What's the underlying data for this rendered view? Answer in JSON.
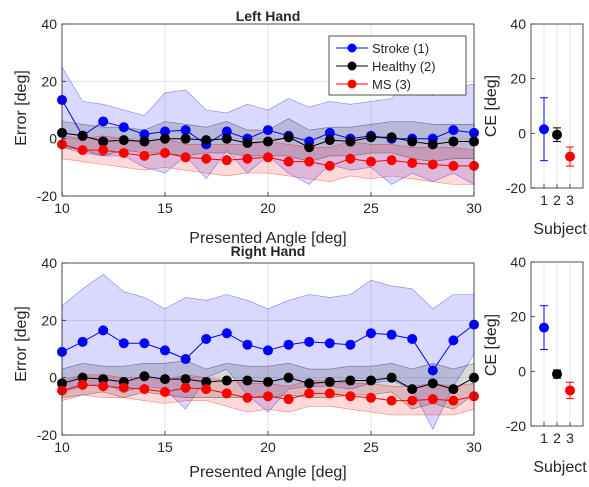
{
  "chart_data": [
    {
      "id": "left-main",
      "type": "line",
      "title": "Left Hand",
      "xlabel": "Presented Angle [deg]",
      "ylabel": "Error [deg]",
      "xlim": [
        10,
        30
      ],
      "ylim": [
        -20,
        40
      ],
      "xticks": [
        "10",
        "15",
        "20",
        "25",
        "30"
      ],
      "yticks": [
        "-20",
        "0",
        "20",
        "40"
      ],
      "grid": true,
      "legend_position": "top-right",
      "x": [
        10,
        11,
        12,
        13,
        14,
        15,
        16,
        17,
        18,
        19,
        20,
        21,
        22,
        23,
        24,
        25,
        26,
        27,
        28,
        29,
        30
      ],
      "series": [
        {
          "name": "Stroke (1)",
          "color": "#0000ff",
          "values": [
            13.5,
            1,
            6,
            4,
            1.5,
            2.5,
            3,
            -2,
            2.5,
            0,
            3,
            1,
            -1,
            2,
            0,
            1,
            0,
            0,
            0,
            3,
            2
          ],
          "band_upper": [
            25,
            13,
            12,
            10,
            8,
            16,
            17,
            10,
            9,
            12,
            10,
            14,
            11,
            13,
            12,
            13,
            14,
            22,
            15,
            18,
            19
          ],
          "band_lower": [
            -3,
            -5,
            -6,
            -6,
            -10,
            -12,
            -6,
            -14,
            -4,
            -12,
            -6,
            -12,
            -16,
            -9,
            -11,
            -10,
            -16,
            -12,
            -15,
            -12,
            -16
          ]
        },
        {
          "name": "Healthy (2)",
          "color": "#000000",
          "values": [
            2,
            1,
            -1,
            -0.5,
            -1,
            0,
            0,
            -0.5,
            0,
            -1.5,
            -1,
            0.5,
            -3,
            -0.5,
            -1,
            0.5,
            0.5,
            -1,
            -2,
            -1,
            -1
          ],
          "band_upper": [
            6,
            5,
            4,
            4,
            3,
            6,
            5,
            4,
            6,
            3,
            3,
            7,
            3,
            4,
            4,
            5,
            6,
            6,
            5,
            5,
            5
          ],
          "band_lower": [
            -3,
            -4,
            -6,
            -4,
            -5,
            -5,
            -6,
            -5,
            -5,
            -6,
            -6,
            -6,
            -8,
            -6,
            -6,
            -5,
            -5,
            -7,
            -8,
            -7,
            -7
          ]
        },
        {
          "name": "MS (3)",
          "color": "#ff0000",
          "values": [
            -2,
            -4,
            -4,
            -5,
            -6,
            -5,
            -6.5,
            -7,
            -7.5,
            -7,
            -6.5,
            -8,
            -8,
            -9.5,
            -7,
            -8,
            -7.5,
            -8.5,
            -9,
            -9.5,
            -9.5
          ],
          "band_upper": [
            1,
            0,
            1,
            0,
            -1,
            0,
            -2,
            -2,
            -2,
            -2,
            -1,
            -2,
            -3,
            -3,
            -1,
            -2,
            -2,
            -3,
            -3,
            -3,
            -4
          ],
          "band_lower": [
            -7,
            -8,
            -9,
            -10,
            -11,
            -10,
            -11,
            -12,
            -13,
            -12,
            -12,
            -13,
            -14,
            -15,
            -13,
            -14,
            -13,
            -14,
            -15,
            -16,
            -16
          ]
        }
      ]
    },
    {
      "id": "left-ce",
      "type": "scatter",
      "xlabel": "Subject",
      "ylabel": "CE [deg]",
      "ylim": [
        -20,
        40
      ],
      "yticks": [
        "-20",
        "0",
        "20",
        "40"
      ],
      "categories": [
        "1",
        "2",
        "3"
      ],
      "values": [
        1.5,
        -0.5,
        -8.5
      ],
      "errors": [
        11.5,
        2.5,
        3.5
      ],
      "colors": [
        "#0000ff",
        "#000000",
        "#ff0000"
      ]
    },
    {
      "id": "right-main",
      "type": "line",
      "title": "Right Hand",
      "xlabel": "Presented Angle [deg]",
      "ylabel": "Error [deg]",
      "xlim": [
        10,
        30
      ],
      "ylim": [
        -20,
        40
      ],
      "xticks": [
        "10",
        "15",
        "20",
        "25",
        "30"
      ],
      "yticks": [
        "-20",
        "0",
        "20",
        "40"
      ],
      "grid": true,
      "x": [
        10,
        11,
        12,
        13,
        14,
        15,
        16,
        17,
        18,
        19,
        20,
        21,
        22,
        23,
        24,
        25,
        26,
        27,
        28,
        29,
        30
      ],
      "series": [
        {
          "name": "Stroke (1)",
          "color": "#0000ff",
          "values": [
            9,
            12.5,
            16.5,
            12,
            12,
            9.5,
            6.5,
            13.5,
            15.5,
            11.5,
            9.5,
            11.5,
            12.5,
            12,
            11.5,
            15.5,
            15,
            13.5,
            2.5,
            13,
            18.5
          ],
          "band_upper": [
            25,
            31,
            36,
            30,
            28,
            24,
            28,
            27,
            29,
            27,
            24,
            27,
            29,
            28,
            29,
            34,
            32,
            31,
            24,
            29,
            29
          ],
          "band_lower": [
            -5,
            -3,
            -2,
            -5,
            -3,
            -4,
            -11,
            0,
            3,
            -6,
            -12,
            -4,
            -3,
            -3,
            -4,
            -2,
            -1,
            -4,
            -18,
            -3,
            8
          ]
        },
        {
          "name": "Healthy (2)",
          "color": "#000000",
          "values": [
            -2,
            0,
            -0.5,
            -1.5,
            0.5,
            -0.5,
            -0.5,
            -1.5,
            -1,
            -1,
            -1.5,
            0,
            -2,
            -1.5,
            -1,
            -1,
            0,
            -4,
            -2,
            -4,
            0
          ],
          "band_upper": [
            3,
            5,
            4,
            4,
            5,
            5,
            6,
            3,
            5,
            4,
            4,
            5,
            3,
            3,
            4,
            4,
            5,
            3,
            5,
            3,
            5
          ],
          "band_lower": [
            -7,
            -6,
            -5,
            -7,
            -5,
            -6,
            -7,
            -7,
            -7,
            -7,
            -7,
            -6,
            -7,
            -7,
            -6,
            -6,
            -5,
            -11,
            -9,
            -11,
            -6
          ]
        },
        {
          "name": "MS (3)",
          "color": "#ff0000",
          "values": [
            -4.5,
            -2.5,
            -3,
            -3.5,
            -4,
            -5,
            -3.5,
            -4,
            -5.5,
            -7,
            -6.5,
            -7.5,
            -5.5,
            -5.5,
            -6.5,
            -7,
            -8,
            -8,
            -7.5,
            -8,
            -6.5
          ],
          "band_upper": [
            -1,
            1,
            1,
            0,
            0,
            -1,
            1,
            0,
            -1,
            -2,
            -2,
            -3,
            -1,
            -1,
            -2,
            -2,
            -3,
            -3,
            -2,
            -3,
            -2
          ],
          "band_lower": [
            -8,
            -6,
            -7,
            -7,
            -8,
            -9,
            -8,
            -8,
            -10,
            -12,
            -11,
            -12,
            -10,
            -10,
            -11,
            -12,
            -13,
            -13,
            -13,
            -13,
            -11
          ]
        }
      ]
    },
    {
      "id": "right-ce",
      "type": "scatter",
      "xlabel": "Subject",
      "ylabel": "CE [deg]",
      "ylim": [
        -20,
        40
      ],
      "yticks": [
        "-20",
        "0",
        "20",
        "40"
      ],
      "categories": [
        "1",
        "2",
        "3"
      ],
      "values": [
        16,
        -1,
        -7
      ],
      "errors": [
        8,
        1.5,
        3
      ],
      "colors": [
        "#0000ff",
        "#000000",
        "#ff0000"
      ]
    }
  ]
}
